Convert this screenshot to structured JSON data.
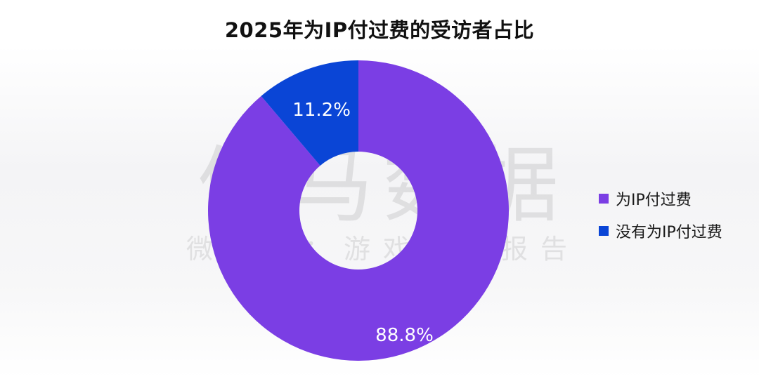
{
  "watermark": {
    "main": "伽马数据",
    "sub": "微信号：游戏产业报告"
  },
  "chart_data": {
    "type": "pie",
    "variant": "donut",
    "title": "2025年为IP付过费的受访者占比",
    "categories": [
      "为IP付过费",
      "没有为IP付过费"
    ],
    "values": [
      88.8,
      11.2
    ],
    "labels": [
      "88.8%",
      "11.2%"
    ],
    "colors": [
      "#7b3ee4",
      "#0a45d6"
    ],
    "legend_position": "right"
  }
}
